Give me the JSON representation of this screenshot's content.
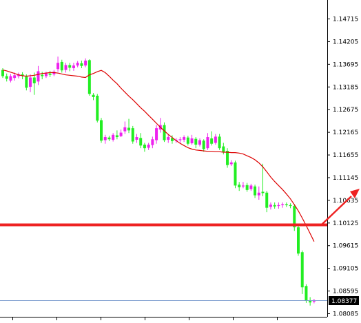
{
  "chart_data": {
    "type": "candlestick",
    "y_ticks": [
      "1.14715",
      "1.14205",
      "1.13695",
      "1.13185",
      "1.12675",
      "1.12165",
      "1.11655",
      "1.11145",
      "1.10635",
      "1.10125",
      "1.09615",
      "1.09105",
      "1.08595",
      "1.08085"
    ],
    "current_price_label": "1.08377",
    "ylim": [
      1.08085,
      1.14715
    ],
    "grid": false,
    "annotations": {
      "horizontal_level": 1.10075,
      "arrow": "pointing up and to the right"
    },
    "colors": {
      "bull_candle": "#ee22ee",
      "bear_candle": "#22ee22",
      "moving_average": "#dd0000",
      "horizontal_line": "#ee2222",
      "arrow": "#ee2222",
      "axis": "#000000",
      "price_marker": "#000000",
      "current_price_line": "#7799cc"
    },
    "moving_average": [
      1.1356,
      1.1354,
      1.1351,
      1.1348,
      1.1345,
      1.1343,
      1.1342,
      1.1343,
      1.1344,
      1.1346,
      1.1348,
      1.1349,
      1.135,
      1.135,
      1.1349,
      1.1347,
      1.1345,
      1.1344,
      1.1343,
      1.1342,
      1.134,
      1.1339,
      1.1345,
      1.1348,
      1.1352,
      1.1355,
      1.135,
      1.1342,
      1.1333,
      1.1325,
      1.1315,
      1.1306,
      1.1297,
      1.1289,
      1.128,
      1.1271,
      1.1263,
      1.1254,
      1.1245,
      1.1236,
      1.1227,
      1.1219,
      1.1211,
      1.1204,
      1.1197,
      1.1191,
      1.1186,
      1.1181,
      1.1178,
      1.1176,
      1.1175,
      1.1174,
      1.1173,
      1.1173,
      1.1172,
      1.1172,
      1.1171,
      1.1171,
      1.117,
      1.117,
      1.1169,
      1.1167,
      1.1163,
      1.1159,
      1.1154,
      1.1147,
      1.1138,
      1.1127,
      1.1115,
      1.1105,
      1.1096,
      1.1087,
      1.1077,
      1.1066,
      1.1053,
      1.1039,
      1.1023,
      1.1006,
      1.0988,
      1.097
    ],
    "candles": [
      [
        1.1356,
        1.1342,
        1.136,
        1.1338
      ],
      [
        1.1342,
        1.1336,
        1.1348,
        1.133
      ],
      [
        1.1332,
        1.1342,
        1.1347,
        1.1328
      ],
      [
        1.1338,
        1.1344,
        1.135,
        1.1332
      ],
      [
        1.1342,
        1.1346,
        1.135,
        1.1337
      ],
      [
        1.1346,
        1.1343,
        1.1351,
        1.1335
      ],
      [
        1.1341,
        1.1316,
        1.1346,
        1.131
      ],
      [
        1.1318,
        1.1339,
        1.1346,
        1.1306
      ],
      [
        1.1339,
        1.1326,
        1.135,
        1.13
      ],
      [
        1.133,
        1.1353,
        1.1365,
        1.1322
      ],
      [
        1.1345,
        1.1342,
        1.1352,
        1.1335
      ],
      [
        1.1342,
        1.1348,
        1.1352,
        1.1338
      ],
      [
        1.1348,
        1.1345,
        1.1354,
        1.134
      ],
      [
        1.1346,
        1.1352,
        1.1356,
        1.1342
      ],
      [
        1.1358,
        1.1372,
        1.1386,
        1.1352
      ],
      [
        1.1374,
        1.1355,
        1.1379,
        1.135
      ],
      [
        1.1356,
        1.1367,
        1.1372,
        1.135
      ],
      [
        1.1367,
        1.1361,
        1.1372,
        1.1353
      ],
      [
        1.136,
        1.1366,
        1.1372,
        1.1354
      ],
      [
        1.1366,
        1.1372,
        1.1376,
        1.1362
      ],
      [
        1.1371,
        1.1365,
        1.1377,
        1.136
      ],
      [
        1.1366,
        1.1377,
        1.1382,
        1.1362
      ],
      [
        1.1378,
        1.1302,
        1.138,
        1.1298
      ],
      [
        1.13,
        1.1295,
        1.1304,
        1.1288
      ],
      [
        1.1298,
        1.1242,
        1.1302,
        1.1238
      ],
      [
        1.1243,
        1.1197,
        1.1248,
        1.1192
      ],
      [
        1.1198,
        1.1205,
        1.121,
        1.119
      ],
      [
        1.1204,
        1.12,
        1.1208,
        1.1196
      ],
      [
        1.1199,
        1.121,
        1.1214,
        1.1195
      ],
      [
        1.1209,
        1.1205,
        1.122,
        1.12
      ],
      [
        1.1207,
        1.1215,
        1.1222,
        1.1205
      ],
      [
        1.1218,
        1.1227,
        1.124,
        1.1212
      ],
      [
        1.1226,
        1.122,
        1.1246,
        1.1214
      ],
      [
        1.1225,
        1.1195,
        1.123,
        1.119
      ],
      [
        1.1199,
        1.1205,
        1.1212,
        1.1192
      ],
      [
        1.1203,
        1.1186,
        1.1214,
        1.118
      ],
      [
        1.1188,
        1.118,
        1.1192,
        1.1172
      ],
      [
        1.1181,
        1.1188,
        1.1192,
        1.1176
      ],
      [
        1.1187,
        1.12,
        1.1206,
        1.118
      ],
      [
        1.1198,
        1.1225,
        1.1232,
        1.119
      ],
      [
        1.1222,
        1.1232,
        1.1248,
        1.1215
      ],
      [
        1.1232,
        1.1198,
        1.1238,
        1.1194
      ],
      [
        1.1199,
        1.1205,
        1.1212,
        1.1192
      ],
      [
        1.1203,
        1.1196,
        1.1209,
        1.119
      ],
      [
        1.1197,
        1.1199,
        1.1203,
        1.1192
      ],
      [
        1.1198,
        1.12,
        1.1205,
        1.1192
      ],
      [
        1.1199,
        1.1205,
        1.1209,
        1.1194
      ],
      [
        1.1204,
        1.119,
        1.1208,
        1.1186
      ],
      [
        1.1191,
        1.1202,
        1.121,
        1.1188
      ],
      [
        1.1201,
        1.1188,
        1.1205,
        1.118
      ],
      [
        1.1188,
        1.1198,
        1.1202,
        1.1184
      ],
      [
        1.1197,
        1.1178,
        1.12,
        1.1172
      ],
      [
        1.118,
        1.1205,
        1.1214,
        1.1176
      ],
      [
        1.1202,
        1.119,
        1.1218,
        1.1186
      ],
      [
        1.1192,
        1.1206,
        1.1212,
        1.1188
      ],
      [
        1.1206,
        1.118,
        1.1212,
        1.1176
      ],
      [
        1.1184,
        1.1172,
        1.1192,
        1.1166
      ],
      [
        1.1174,
        1.1142,
        1.118,
        1.1136
      ],
      [
        1.1144,
        1.1148,
        1.1153,
        1.114
      ],
      [
        1.1148,
        1.1096,
        1.1152,
        1.109
      ],
      [
        1.1098,
        1.1092,
        1.1104,
        1.1084
      ],
      [
        1.1094,
        1.1096,
        1.1104,
        1.109
      ],
      [
        1.1097,
        1.1086,
        1.1102,
        1.1082
      ],
      [
        1.1088,
        1.1096,
        1.11,
        1.1084
      ],
      [
        1.1094,
        1.1074,
        1.1098,
        1.1068
      ],
      [
        1.1074,
        1.108,
        1.1094,
        1.1064
      ],
      [
        1.1082,
        1.1079,
        1.1145,
        1.1072
      ],
      [
        1.108,
        1.1046,
        1.1084,
        1.1036
      ],
      [
        1.1048,
        1.1053,
        1.1058,
        1.1042
      ],
      [
        1.1052,
        1.1049,
        1.1058,
        1.1044
      ],
      [
        1.105,
        1.1052,
        1.1058,
        1.1044
      ],
      [
        1.1052,
        1.1054,
        1.1058,
        1.1046
      ],
      [
        1.1054,
        1.1052,
        1.1058,
        1.1048
      ],
      [
        1.1052,
        1.105,
        1.1056,
        1.1045
      ],
      [
        1.105,
        1.1002,
        1.1054,
        1.0994
      ],
      [
        1.1002,
        1.0943,
        1.101,
        1.0938
      ],
      [
        1.0946,
        1.0867,
        1.095,
        1.0852
      ],
      [
        1.087,
        1.0837,
        1.0874,
        1.0832
      ],
      [
        1.0838,
        1.0833,
        1.0845,
        1.0826
      ],
      [
        1.0835,
        1.0838,
        1.0841,
        1.0831
      ]
    ]
  }
}
